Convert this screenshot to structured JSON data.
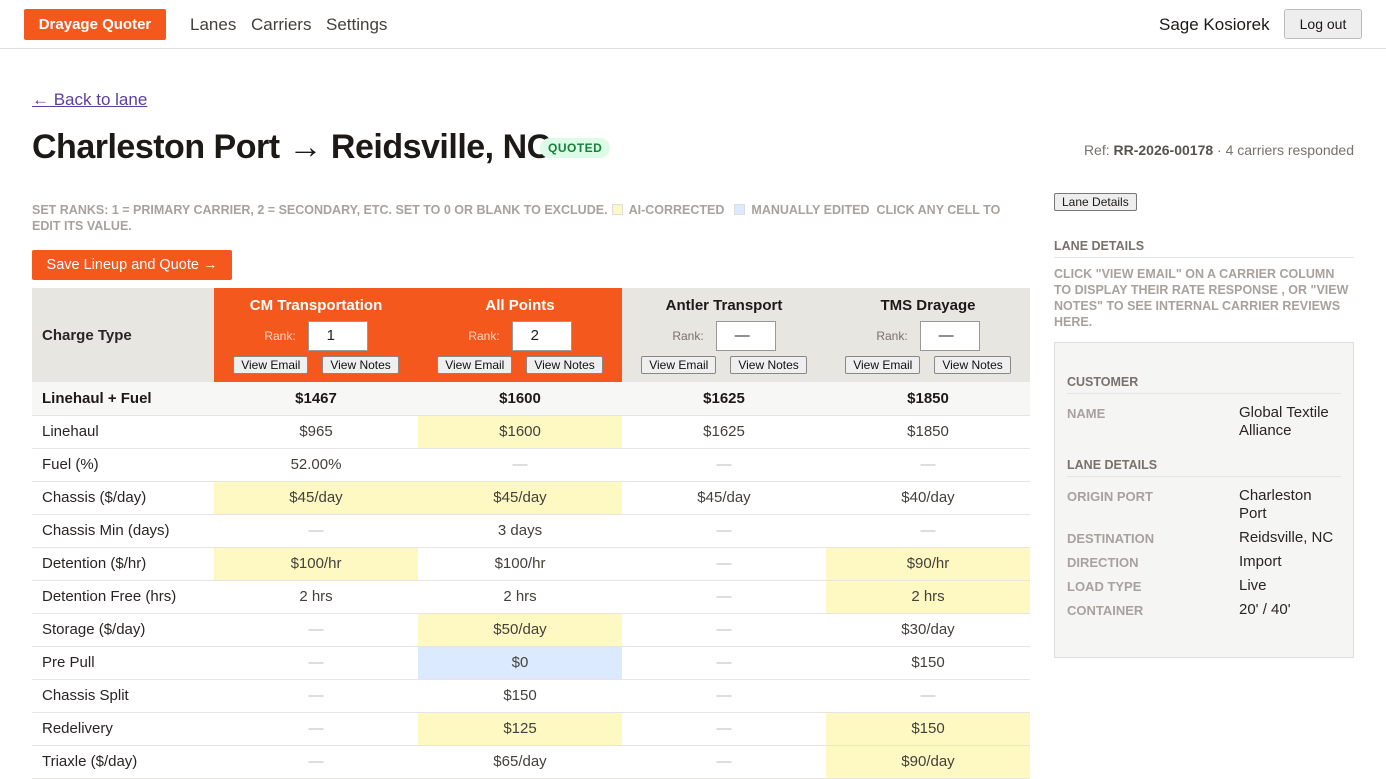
{
  "nav": {
    "brand": "Drayage Quoter",
    "links": [
      "Lanes",
      "Carriers",
      "Settings"
    ],
    "user": "Sage Kosiorek",
    "logout": "Log out"
  },
  "page": {
    "back": "← Back to lane",
    "title": "Charleston Port → Reidsville, NC",
    "status": "QUOTED",
    "ref_label": "Ref:",
    "ref": "RR-2026-00178",
    "separator": "·",
    "responded": "4 carriers responded",
    "instructions": "SET RANKS: 1 = PRIMARY CARRIER, 2 = SECONDARY, ETC. SET TO 0 OR BLANK TO EXCLUDE.",
    "legend_ai": "AI-CORRECTED",
    "legend_manual": "MANUALLY EDITED",
    "instructions_end": "CLICK ANY CELL TO EDIT ITS VALUE.",
    "save": "Save Lineup and Quote →"
  },
  "table": {
    "header": "Charge Type",
    "rank_label": "Rank:",
    "email": "View Email",
    "notes": "View Notes",
    "carriers": [
      {
        "name": "CM Transportation",
        "rank": "1",
        "selected": true
      },
      {
        "name": "All Points",
        "rank": "2",
        "selected": true
      },
      {
        "name": "Antler Transport",
        "rank": "—",
        "selected": false
      },
      {
        "name": "TMS Drayage",
        "rank": "—",
        "selected": false
      }
    ],
    "rows": [
      {
        "label": "Linehaul + Fuel",
        "summary": true,
        "cells": [
          {
            "text": "$1467"
          },
          {
            "text": "$1600"
          },
          {
            "text": "$1625"
          },
          {
            "text": "$1850"
          }
        ]
      },
      {
        "label": "Linehaul",
        "cells": [
          {
            "text": "$965"
          },
          {
            "text": "$1600",
            "edit": "ai"
          },
          {
            "text": "$1625"
          },
          {
            "text": "$1850"
          }
        ]
      },
      {
        "label": "Fuel (%)",
        "cells": [
          {
            "text": "52.00%"
          },
          {
            "text": "—"
          },
          {
            "text": "—"
          },
          {
            "text": "—"
          }
        ]
      },
      {
        "label": "Chassis ($/day)",
        "cells": [
          {
            "text": "$45/day",
            "edit": "ai"
          },
          {
            "text": "$45/day",
            "edit": "ai"
          },
          {
            "text": "$45/day"
          },
          {
            "text": "$40/day"
          }
        ]
      },
      {
        "label": "Chassis Min (days)",
        "cells": [
          {
            "text": "—"
          },
          {
            "text": "3 days"
          },
          {
            "text": "—"
          },
          {
            "text": "—"
          }
        ]
      },
      {
        "label": "Detention ($/hr)",
        "cells": [
          {
            "text": "$100/hr",
            "edit": "ai"
          },
          {
            "text": "$100/hr"
          },
          {
            "text": "—"
          },
          {
            "text": "$90/hr",
            "edit": "ai"
          }
        ]
      },
      {
        "label": "Detention Free (hrs)",
        "cells": [
          {
            "text": "2 hrs"
          },
          {
            "text": "2 hrs"
          },
          {
            "text": "—"
          },
          {
            "text": "2 hrs",
            "edit": "ai"
          }
        ]
      },
      {
        "label": "Storage ($/day)",
        "cells": [
          {
            "text": "—"
          },
          {
            "text": "$50/day",
            "edit": "ai"
          },
          {
            "text": "—"
          },
          {
            "text": "$30/day"
          }
        ]
      },
      {
        "label": "Pre Pull",
        "cells": [
          {
            "text": "—"
          },
          {
            "text": "$0",
            "edit": "manual"
          },
          {
            "text": "—"
          },
          {
            "text": "$150"
          }
        ]
      },
      {
        "label": "Chassis Split",
        "cells": [
          {
            "text": "—"
          },
          {
            "text": "$150"
          },
          {
            "text": "—"
          },
          {
            "text": "—"
          }
        ]
      },
      {
        "label": "Redelivery",
        "cells": [
          {
            "text": "—"
          },
          {
            "text": "$125",
            "edit": "ai"
          },
          {
            "text": "—"
          },
          {
            "text": "$150",
            "edit": "ai"
          }
        ]
      },
      {
        "label": "Triaxle ($/day)",
        "cells": [
          {
            "text": "—"
          },
          {
            "text": "$65/day"
          },
          {
            "text": "—"
          },
          {
            "text": "$90/day",
            "edit": "ai"
          }
        ]
      }
    ]
  },
  "sidebar": {
    "tab": "Lane Details",
    "heading": "LANE DETAILS",
    "help": "CLICK \"VIEW EMAIL\" ON A CARRIER COLUMN TO DISPLAY THEIR RATE RESPONSE , OR \"VIEW NOTES\" TO SEE INTERNAL CARRIER REVIEWS HERE.",
    "sections": [
      {
        "title": "CUSTOMER",
        "fields": [
          {
            "label": "NAME",
            "value": "Global Textile Alliance"
          }
        ]
      },
      {
        "title": "LANE DETAILS",
        "fields": [
          {
            "label": "ORIGIN PORT",
            "value": "Charleston Port"
          },
          {
            "label": "DESTINATION",
            "value": "Reidsville, NC"
          },
          {
            "label": "DIRECTION",
            "value": "Import"
          },
          {
            "label": "LOAD TYPE",
            "value": "Live"
          },
          {
            "label": "CONTAINER",
            "value": "20' / 40'"
          }
        ]
      }
    ]
  }
}
